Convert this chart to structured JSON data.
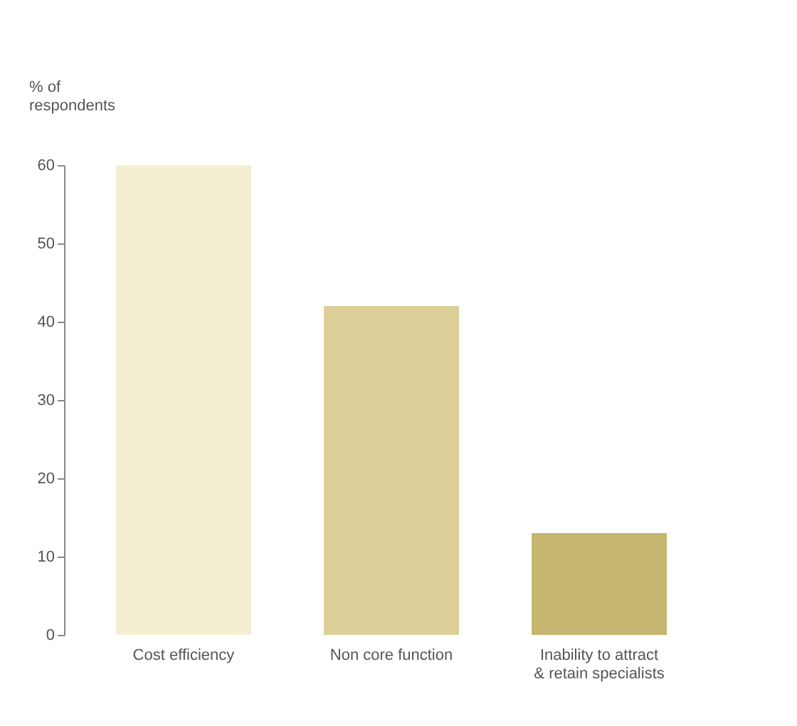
{
  "chart_data": {
    "type": "bar",
    "ylabel": "% of respondents",
    "categories": [
      "Cost efficiency",
      "Non core function",
      "Inability to attract & retain specialists"
    ],
    "values": [
      60,
      42,
      13
    ],
    "colors": [
      "#f4eed2",
      "#dccf98",
      "#c4b66e"
    ],
    "ylim": [
      0,
      60
    ],
    "yticks": [
      0,
      10,
      20,
      30,
      40,
      50,
      60
    ],
    "grid": false
  }
}
